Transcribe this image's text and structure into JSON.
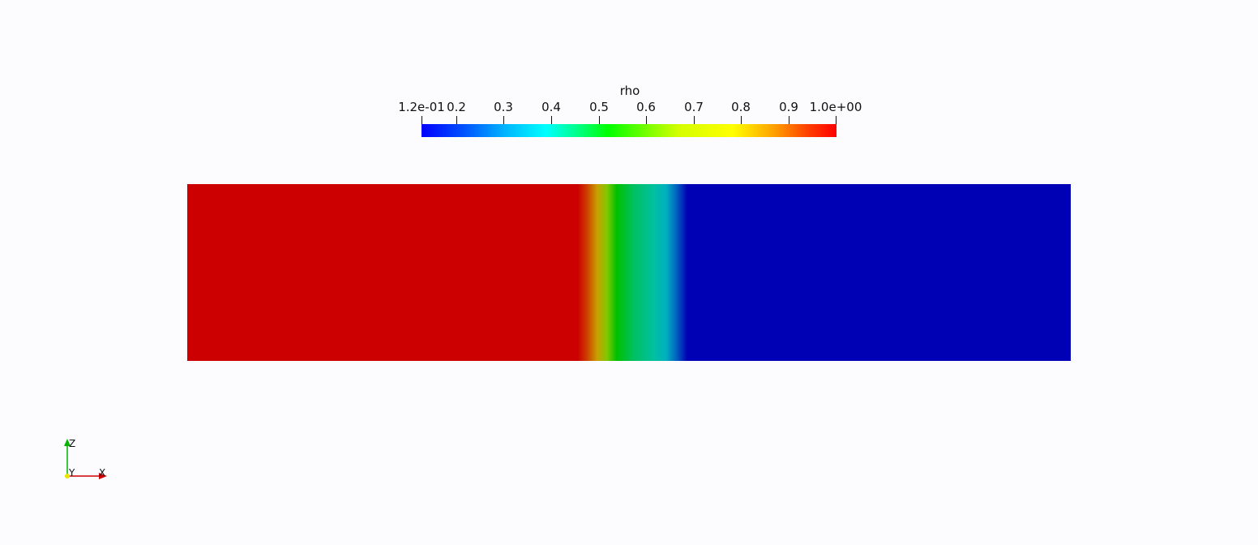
{
  "colorbar": {
    "title": "rho",
    "tick_labels": [
      "1.2e-01",
      "0.2",
      "0.3",
      "0.4",
      "0.5",
      "0.6",
      "0.7",
      "0.8",
      "0.9",
      "1.0e+00"
    ],
    "range": [
      0.12,
      1.0
    ],
    "colormap": [
      "#0000ff",
      "#00b4ff",
      "#00ffff",
      "#00ff00",
      "#b4ff00",
      "#ffff00",
      "#ff8c00",
      "#ff0000"
    ]
  },
  "field": {
    "variable": "rho",
    "left_value": 1.0,
    "right_value": 0.12,
    "colors": {
      "high": "#cc0000",
      "low": "#0000b4"
    }
  },
  "axes": {
    "z_label": "Z",
    "y_label": "Y",
    "x_label": "X",
    "z_color": "#00b400",
    "x_color": "#cc0000",
    "y_color": "#e6e600"
  }
}
